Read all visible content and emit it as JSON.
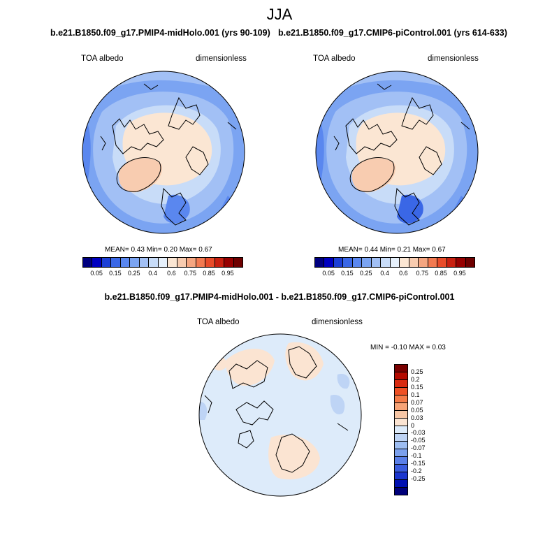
{
  "season": "JJA",
  "panel_left": {
    "title": "b.e21.B1850.f09_g17.PMIP4-midHolo.001 (yrs 90-109)",
    "var_label": "TOA albedo",
    "units_label": "dimensionless",
    "stats": "MEAN=   0.43  Min=   0.20  Max=   0.67"
  },
  "panel_right": {
    "title": "b.e21.B1850.f09_g17.CMIP6-piControl.001 (yrs 614-633)",
    "var_label": "TOA albedo",
    "units_label": "dimensionless",
    "stats": "MEAN=   0.44  Min=   0.21  Max=   0.67"
  },
  "panel_diff": {
    "title": "b.e21.B1850.f09_g17.PMIP4-midHolo.001 - b.e21.B1850.f09_g17.CMIP6-piControl.001",
    "var_label": "TOA albedo",
    "units_label": "dimensionless",
    "stats": "MIN =  -0.10 MAX =   0.03"
  },
  "colorbar_abs": {
    "colors": [
      "#00007f",
      "#0000c0",
      "#1c3fd6",
      "#3a67e6",
      "#5a87ef",
      "#7ba4f2",
      "#a2c0f5",
      "#c8dcf8",
      "#e6f0fb",
      "#fbe6d3",
      "#f8ccb0",
      "#f5a681",
      "#f27a51",
      "#e84c2a",
      "#c82010",
      "#960000",
      "#6e0000"
    ],
    "ticks": [
      "0.05",
      "0.15",
      "0.25",
      "0.4",
      "0.6",
      "0.75",
      "0.85",
      "0.95"
    ]
  },
  "colorbar_diff": {
    "colors": [
      "#7a0000",
      "#b40a00",
      "#d82a10",
      "#ee5024",
      "#f47b48",
      "#f7a376",
      "#f8c7a6",
      "#fbe4d2",
      "#ddebfa",
      "#bed4f5",
      "#9dbdf2",
      "#7ba0ed",
      "#5a7fe8",
      "#3a5cde",
      "#1b36cf",
      "#0010b2",
      "#00007a"
    ],
    "ticks": [
      "0.25",
      "0.2",
      "0.15",
      "0.1",
      "0.07",
      "0.05",
      "0.03",
      "0",
      "-0.03",
      "-0.05",
      "-0.07",
      "-0.1",
      "-0.15",
      "-0.2",
      "-0.25"
    ]
  }
}
